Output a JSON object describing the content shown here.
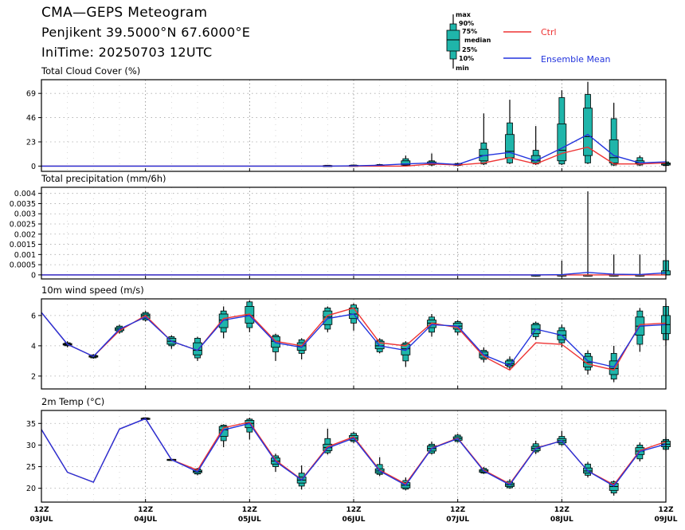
{
  "header": {
    "title": "CMA—GEPS Meteogram",
    "location": "Penjikent 39.5000°N 67.6000°E",
    "init_time": "IniTime: 20250703 12UTC"
  },
  "legend": {
    "box_labels": [
      "max",
      "90%",
      "75%",
      "median",
      "25%",
      "10%",
      "min"
    ],
    "ctrl_label": "Ctrl",
    "mean_label": "Ensemble Mean",
    "ctrl_color": "#ee3333",
    "mean_color": "#2233dd",
    "box_color": "#1fb5aa"
  },
  "x_axis": {
    "ticks": [
      {
        "hour": 0,
        "top": "12Z",
        "bottom": "03JUL"
      },
      {
        "hour": 24,
        "top": "12Z",
        "bottom": "04JUL"
      },
      {
        "hour": 48,
        "top": "12Z",
        "bottom": "05JUL"
      },
      {
        "hour": 72,
        "top": "12Z",
        "bottom": "06JUL"
      },
      {
        "hour": 96,
        "top": "12Z",
        "bottom": "07JUL"
      },
      {
        "hour": 120,
        "top": "12Z",
        "bottom": "08JUL"
      },
      {
        "hour": 144,
        "top": "12Z",
        "bottom": "09JUL"
      }
    ]
  },
  "chart_data": [
    {
      "type": "box",
      "title": "Total Cloud Cover (%)",
      "ylim": [
        -5,
        82
      ],
      "yticks": [
        0,
        23,
        46,
        69
      ],
      "ytick_labels": [
        "0",
        "23",
        "46",
        "69"
      ],
      "x": [
        0,
        6,
        12,
        18,
        24,
        30,
        36,
        42,
        48,
        54,
        60,
        66,
        72,
        78,
        84,
        90,
        96,
        102,
        108,
        114,
        120,
        126,
        132,
        138,
        144
      ],
      "ctrl": [
        0,
        0,
        0,
        0,
        0,
        0,
        0,
        0,
        0,
        0,
        0,
        0,
        0,
        0,
        0,
        2,
        1,
        3,
        8,
        2,
        12,
        18,
        2,
        2,
        3
      ],
      "mean": [
        0,
        0,
        0,
        0,
        0,
        0,
        0,
        0,
        0,
        0,
        0,
        0,
        0.2,
        0.8,
        2,
        3,
        1.5,
        10,
        13,
        5,
        17,
        30,
        10,
        3,
        4
      ],
      "boxes": [
        null,
        null,
        null,
        null,
        null,
        null,
        null,
        null,
        null,
        null,
        null,
        {
          "min": 0,
          "p10": 0,
          "p25": 0,
          "median": 0.3,
          "p75": 0.6,
          "p90": 0.8,
          "max": 1
        },
        {
          "min": 0,
          "p10": 0,
          "p25": 0.2,
          "median": 0.5,
          "p75": 0.8,
          "p90": 1,
          "max": 1.5
        },
        {
          "min": 0,
          "p10": 0,
          "p25": 0.3,
          "median": 0.5,
          "p75": 1,
          "p90": 1.5,
          "max": 2
        },
        {
          "min": 0,
          "p10": 0.5,
          "p25": 1,
          "median": 2,
          "p75": 5,
          "p90": 7,
          "max": 10
        },
        {
          "min": 0,
          "p10": 1,
          "p25": 1.5,
          "median": 2.5,
          "p75": 4,
          "p90": 5,
          "max": 12
        },
        {
          "min": 0,
          "p10": 0.5,
          "p25": 1,
          "median": 1.5,
          "p75": 2,
          "p90": 2.5,
          "max": 3
        },
        {
          "min": 1,
          "p10": 2,
          "p25": 5,
          "median": 10,
          "p75": 16,
          "p90": 22,
          "max": 50
        },
        {
          "min": 2,
          "p10": 3,
          "p25": 8,
          "median": 14,
          "p75": 30,
          "p90": 41,
          "max": 63
        },
        {
          "min": 1,
          "p10": 2,
          "p25": 3,
          "median": 5,
          "p75": 10,
          "p90": 15,
          "max": 38
        },
        {
          "min": 1,
          "p10": 2,
          "p25": 5,
          "median": 15,
          "p75": 40,
          "p90": 65,
          "max": 72
        },
        {
          "min": 2,
          "p10": 3,
          "p25": 10,
          "median": 28,
          "p75": 55,
          "p90": 68,
          "max": 80
        },
        {
          "min": 0,
          "p10": 1,
          "p25": 3,
          "median": 8,
          "p75": 25,
          "p90": 45,
          "max": 60
        },
        {
          "min": 0,
          "p10": 1,
          "p25": 2,
          "median": 3,
          "p75": 5,
          "p90": 8,
          "max": 10
        },
        {
          "min": 0,
          "p10": 0.5,
          "p25": 1,
          "median": 2,
          "p75": 3,
          "p90": 4,
          "max": 6
        }
      ]
    },
    {
      "type": "box",
      "title": "Total precipitation (mm/6h)",
      "ylim": [
        -0.0002,
        0.0043
      ],
      "yticks": [
        0,
        0.0005,
        0.001,
        0.0015,
        0.002,
        0.0025,
        0.003,
        0.0035,
        0.004
      ],
      "ytick_labels": [
        "0",
        "0.0005",
        "0.001",
        "0.0015",
        "0.002",
        "0.0025",
        "0.003",
        "0.0035",
        "0.004"
      ],
      "x": [
        0,
        6,
        12,
        18,
        24,
        30,
        36,
        42,
        48,
        54,
        60,
        66,
        72,
        78,
        84,
        90,
        96,
        102,
        108,
        114,
        120,
        126,
        132,
        138,
        144
      ],
      "ctrl": [
        0,
        0,
        0,
        0,
        0,
        0,
        0,
        0,
        0,
        0,
        0,
        0,
        0,
        0,
        0,
        0,
        0,
        0,
        0,
        0,
        0,
        0,
        0,
        0,
        0
      ],
      "mean": [
        0,
        0,
        0,
        0,
        0,
        0,
        0,
        0,
        0,
        0,
        0,
        0,
        0,
        0,
        0,
        0,
        0,
        0,
        0,
        0,
        1e-05,
        0.00012,
        3e-05,
        2e-05,
        0.0001
      ],
      "boxes": [
        null,
        null,
        null,
        null,
        null,
        null,
        null,
        null,
        null,
        null,
        null,
        null,
        null,
        null,
        null,
        null,
        null,
        null,
        null,
        {
          "min": 0,
          "p10": 0,
          "p25": 0,
          "median": 0,
          "p75": 0,
          "p90": 0,
          "max": 2e-05
        },
        {
          "min": 0,
          "p10": 0,
          "p25": 0,
          "median": 0,
          "p75": 0,
          "p90": 0,
          "max": 0.0007
        },
        {
          "min": 0,
          "p10": 0,
          "p25": 0,
          "median": 0,
          "p75": 0,
          "p90": 0,
          "max": 0.0041
        },
        {
          "min": 0,
          "p10": 0,
          "p25": 0,
          "median": 0,
          "p75": 0,
          "p90": 0,
          "max": 0.001
        },
        {
          "min": 0,
          "p10": 0,
          "p25": 0,
          "median": 0,
          "p75": 0,
          "p90": 0,
          "max": 0.001
        },
        {
          "min": 0,
          "p10": 0,
          "p25": 0,
          "median": 0,
          "p75": 0.0002,
          "p90": 0.0007,
          "max": 0.0007
        }
      ]
    },
    {
      "type": "box",
      "title": "10m wind speed (m/s)",
      "ylim": [
        1.15,
        7.1
      ],
      "yticks": [
        2,
        4,
        6
      ],
      "ytick_labels": [
        "2",
        "4",
        "6"
      ],
      "x": [
        0,
        6,
        12,
        18,
        24,
        30,
        36,
        42,
        48,
        54,
        60,
        66,
        72,
        78,
        84,
        90,
        96,
        102,
        108,
        114,
        120,
        126,
        132,
        138,
        144
      ],
      "ctrl": [
        6.2,
        4.1,
        3.3,
        5.0,
        6.0,
        4.3,
        3.7,
        5.8,
        6.1,
        4.3,
        4.0,
        6.0,
        6.5,
        4.2,
        4.0,
        5.5,
        5.2,
        3.3,
        2.4,
        4.2,
        4.1,
        2.8,
        2.4,
        5.4,
        5.5
      ],
      "mean": [
        6.2,
        4.1,
        3.3,
        5.1,
        5.9,
        4.3,
        3.7,
        5.7,
        6.0,
        4.2,
        3.9,
        5.8,
        6.1,
        4.0,
        3.7,
        5.4,
        5.3,
        3.4,
        2.7,
        5.1,
        4.7,
        3.0,
        2.6,
        5.3,
        5.4
      ],
      "boxes": [
        null,
        {
          "min": 3.9,
          "p10": 4.0,
          "p25": 4.05,
          "median": 4.1,
          "p75": 4.15,
          "p90": 4.2,
          "max": 4.3
        },
        {
          "min": 3.15,
          "p10": 3.2,
          "p25": 3.25,
          "median": 3.3,
          "p75": 3.35,
          "p90": 3.4,
          "max": 3.45
        },
        {
          "min": 4.8,
          "p10": 4.9,
          "p25": 5.0,
          "median": 5.1,
          "p75": 5.2,
          "p90": 5.3,
          "max": 5.4
        },
        {
          "min": 5.6,
          "p10": 5.7,
          "p25": 5.8,
          "median": 6.0,
          "p75": 6.1,
          "p90": 6.2,
          "max": 6.3
        },
        {
          "min": 3.8,
          "p10": 4.0,
          "p25": 4.1,
          "median": 4.3,
          "p75": 4.5,
          "p90": 4.6,
          "max": 4.7
        },
        {
          "min": 3.0,
          "p10": 3.2,
          "p25": 3.4,
          "median": 3.7,
          "p75": 4.2,
          "p90": 4.5,
          "max": 4.6
        },
        {
          "min": 4.5,
          "p10": 4.9,
          "p25": 5.2,
          "median": 5.7,
          "p75": 6.1,
          "p90": 6.3,
          "max": 6.6
        },
        {
          "min": 4.9,
          "p10": 5.2,
          "p25": 5.5,
          "median": 6.0,
          "p75": 6.6,
          "p90": 6.9,
          "max": 7.0
        },
        {
          "min": 3.0,
          "p10": 3.6,
          "p25": 3.9,
          "median": 4.3,
          "p75": 4.6,
          "p90": 4.7,
          "max": 4.8
        },
        {
          "min": 3.1,
          "p10": 3.5,
          "p25": 3.7,
          "median": 4.0,
          "p75": 4.2,
          "p90": 4.4,
          "max": 4.5
        },
        {
          "min": 4.9,
          "p10": 5.1,
          "p25": 5.4,
          "median": 5.9,
          "p75": 6.3,
          "p90": 6.5,
          "max": 6.6
        },
        {
          "min": 5.0,
          "p10": 5.5,
          "p25": 5.8,
          "median": 6.1,
          "p75": 6.5,
          "p90": 6.7,
          "max": 6.8
        },
        {
          "min": 3.5,
          "p10": 3.6,
          "p25": 3.8,
          "median": 4.0,
          "p75": 4.3,
          "p90": 4.4,
          "max": 4.5
        },
        {
          "min": 2.6,
          "p10": 3.0,
          "p25": 3.4,
          "median": 3.8,
          "p75": 4.1,
          "p90": 4.2,
          "max": 4.3
        },
        {
          "min": 4.6,
          "p10": 4.9,
          "p25": 5.2,
          "median": 5.5,
          "p75": 5.7,
          "p90": 5.9,
          "max": 6.1
        },
        {
          "min": 4.7,
          "p10": 4.9,
          "p25": 5.1,
          "median": 5.3,
          "p75": 5.5,
          "p90": 5.6,
          "max": 5.7
        },
        {
          "min": 2.9,
          "p10": 3.1,
          "p25": 3.2,
          "median": 3.4,
          "p75": 3.6,
          "p90": 3.7,
          "max": 3.9
        },
        {
          "min": 2.4,
          "p10": 2.6,
          "p25": 2.7,
          "median": 2.8,
          "p75": 3.0,
          "p90": 3.1,
          "max": 3.3
        },
        {
          "min": 4.4,
          "p10": 4.6,
          "p25": 4.8,
          "median": 5.1,
          "p75": 5.4,
          "p90": 5.5,
          "max": 5.6
        },
        {
          "min": 3.9,
          "p10": 4.2,
          "p25": 4.4,
          "median": 4.7,
          "p75": 5.0,
          "p90": 5.2,
          "max": 5.4
        },
        {
          "min": 2.1,
          "p10": 2.4,
          "p25": 2.6,
          "median": 2.9,
          "p75": 3.3,
          "p90": 3.5,
          "max": 3.7
        },
        {
          "min": 1.6,
          "p10": 1.8,
          "p25": 2.1,
          "median": 2.5,
          "p75": 3.0,
          "p90": 3.5,
          "max": 4.0
        },
        {
          "min": 3.6,
          "p10": 4.1,
          "p25": 4.7,
          "median": 5.3,
          "p75": 5.9,
          "p90": 6.3,
          "max": 6.5
        },
        {
          "min": 4.0,
          "p10": 4.4,
          "p25": 4.8,
          "median": 5.4,
          "p75": 6.0,
          "p90": 6.6,
          "max": 6.8
        }
      ]
    },
    {
      "type": "box",
      "title": "2m Temp (°C)",
      "ylim": [
        16.8,
        38.0
      ],
      "yticks": [
        20,
        25,
        30,
        35
      ],
      "ytick_labels": [
        "20",
        "25",
        "30",
        "35"
      ],
      "x": [
        0,
        6,
        12,
        18,
        24,
        30,
        36,
        42,
        48,
        54,
        60,
        66,
        72,
        78,
        84,
        90,
        96,
        102,
        108,
        114,
        120,
        126,
        132,
        138,
        144
      ],
      "ctrl": [
        33.6,
        23.7,
        21.4,
        33.7,
        36.1,
        26.6,
        24.2,
        34.0,
        35.3,
        26.5,
        22.0,
        29.6,
        31.9,
        24.2,
        21.0,
        29.3,
        31.6,
        24.2,
        21.0,
        29.3,
        31.0,
        24.0,
        20.8,
        28.7,
        30.8
      ],
      "mean": [
        33.6,
        23.7,
        21.4,
        33.7,
        36.1,
        26.6,
        23.8,
        33.5,
        35.0,
        26.2,
        21.9,
        29.3,
        31.6,
        24.0,
        20.7,
        29.2,
        31.5,
        24.0,
        20.8,
        29.2,
        31.0,
        24.0,
        20.5,
        28.5,
        30.2
      ],
      "boxes": [
        null,
        null,
        null,
        null,
        {
          "min": 35.8,
          "p10": 35.9,
          "p25": 36.0,
          "median": 36.1,
          "p75": 36.2,
          "p90": 36.3,
          "max": 36.4
        },
        {
          "min": 26.4,
          "p10": 26.5,
          "p25": 26.5,
          "median": 26.6,
          "p75": 26.7,
          "p90": 26.7,
          "max": 26.8
        },
        {
          "min": 23.0,
          "p10": 23.3,
          "p25": 23.6,
          "median": 23.9,
          "p75": 24.2,
          "p90": 24.5,
          "max": 24.7
        },
        {
          "min": 29.5,
          "p10": 31.0,
          "p25": 32.0,
          "median": 33.5,
          "p75": 34.3,
          "p90": 34.6,
          "max": 34.8
        },
        {
          "min": 31.3,
          "p10": 33.0,
          "p25": 34.0,
          "median": 35.0,
          "p75": 35.7,
          "p90": 36.0,
          "max": 36.3
        },
        {
          "min": 23.8,
          "p10": 25.0,
          "p25": 25.6,
          "median": 26.3,
          "p75": 27.0,
          "p90": 27.5,
          "max": 28.0
        },
        {
          "min": 19.7,
          "p10": 20.5,
          "p25": 21.2,
          "median": 21.9,
          "p75": 22.6,
          "p90": 23.5,
          "max": 25.3
        },
        {
          "min": 27.8,
          "p10": 28.2,
          "p25": 28.7,
          "median": 29.4,
          "p75": 30.2,
          "p90": 31.5,
          "max": 33.8
        },
        {
          "min": 30.5,
          "p10": 30.8,
          "p25": 31.1,
          "median": 31.6,
          "p75": 32.2,
          "p90": 32.7,
          "max": 33.1
        },
        {
          "min": 22.8,
          "p10": 23.2,
          "p25": 23.5,
          "median": 24.0,
          "p75": 24.5,
          "p90": 25.5,
          "max": 27.2
        },
        {
          "min": 19.5,
          "p10": 19.8,
          "p25": 20.1,
          "median": 20.7,
          "p75": 21.3,
          "p90": 21.8,
          "max": 22.5
        },
        {
          "min": 27.8,
          "p10": 28.1,
          "p25": 28.6,
          "median": 29.2,
          "p75": 29.8,
          "p90": 30.2,
          "max": 30.8
        },
        {
          "min": 30.6,
          "p10": 30.8,
          "p25": 31.1,
          "median": 31.5,
          "p75": 31.9,
          "p90": 32.3,
          "max": 32.6
        },
        {
          "min": 23.3,
          "p10": 23.5,
          "p25": 23.7,
          "median": 24.0,
          "p75": 24.3,
          "p90": 24.6,
          "max": 24.9
        },
        {
          "min": 19.9,
          "p10": 20.1,
          "p25": 20.4,
          "median": 20.8,
          "p75": 21.2,
          "p90": 21.6,
          "max": 22.1
        },
        {
          "min": 27.9,
          "p10": 28.4,
          "p25": 28.7,
          "median": 29.2,
          "p75": 29.7,
          "p90": 30.3,
          "max": 31.0
        },
        {
          "min": 29.8,
          "p10": 30.1,
          "p25": 30.5,
          "median": 31.0,
          "p75": 31.5,
          "p90": 32.0,
          "max": 33.3
        },
        {
          "min": 22.5,
          "p10": 23.0,
          "p25": 23.5,
          "median": 24.0,
          "p75": 24.7,
          "p90": 25.6,
          "max": 26.1
        },
        {
          "min": 18.3,
          "p10": 18.9,
          "p25": 19.5,
          "median": 20.4,
          "p75": 21.1,
          "p90": 21.5,
          "max": 21.8
        },
        {
          "min": 26.2,
          "p10": 26.8,
          "p25": 27.8,
          "median": 28.6,
          "p75": 29.4,
          "p90": 30.0,
          "max": 30.6
        },
        {
          "min": 28.6,
          "p10": 29.0,
          "p25": 29.6,
          "median": 30.2,
          "p75": 30.9,
          "p90": 31.3,
          "max": 31.9
        }
      ]
    }
  ]
}
